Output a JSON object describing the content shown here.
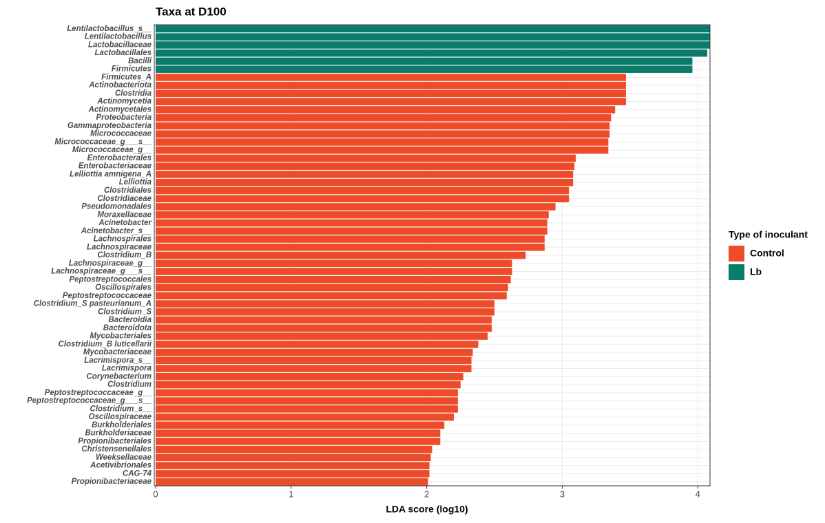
{
  "chart_data": {
    "type": "hbar",
    "title": "Taxa at D100",
    "x_label": "LDA score (log10)",
    "categories": [
      "Lentilactobacillus_s__",
      "Lentilactobacillus",
      "Lactobacillaceae",
      "Lactobacillales",
      "Bacilli",
      "Firmicutes",
      "Firmicutes_A",
      "Actinobacteriota",
      "Clostridia",
      "Actinomycetia",
      "Actinomycetales",
      "Proteobacteria",
      "Gammaproteobacteria",
      "Micrococcaceae",
      "Micrococcaceae_g___s__",
      "Micrococcaceae_g__",
      "Enterobacterales",
      "Enterobacteriaceae",
      "Lelliottia amnigena_A",
      "Lelliottia",
      "Clostridiales",
      "Clostridiaceae",
      "Pseudomonadales",
      "Moraxellaceae",
      "Acinetobacter",
      "Acinetobacter_s__",
      "Lachnospirales",
      "Lachnospiraceae",
      "Clostridium_B",
      "Lachnospiraceae_g__",
      "Lachnospiraceae_g___s__",
      "Peptostreptococcales",
      "Oscillospirales",
      "Peptostreptococcaceae",
      "Clostridium_S pasteurianum_A",
      "Clostridium_S",
      "Bacteroidia",
      "Bacteroidota",
      "Mycobacteriales",
      "Clostridium_B luticellarii",
      "Mycobacteriaceae",
      "Lacrimispora_s__",
      "Lacrimispora",
      "Corynebacterium",
      "Clostridium",
      "Peptostreptococcaceae_g__",
      "Peptostreptococcaceae_g___s__",
      "Clostridium_s__",
      "Oscillospiraceae",
      "Burkholderiales",
      "Burkholderiaceae",
      "Propionibacteriales",
      "Christensenellales",
      "Weeksellaceae",
      "Acetivibrionales",
      "CAG-74",
      "Propionibacteriaceae"
    ],
    "series": [
      {
        "name": "Control",
        "color": "#ee4b2b",
        "values": [
          null,
          null,
          null,
          null,
          null,
          null,
          3.47,
          3.47,
          3.47,
          3.47,
          3.39,
          3.36,
          3.35,
          3.35,
          3.34,
          3.34,
          3.1,
          3.09,
          3.08,
          3.08,
          3.05,
          3.05,
          2.95,
          2.9,
          2.89,
          2.89,
          2.87,
          2.87,
          2.73,
          2.63,
          2.63,
          2.62,
          2.6,
          2.59,
          2.5,
          2.5,
          2.48,
          2.48,
          2.45,
          2.38,
          2.34,
          2.33,
          2.33,
          2.27,
          2.25,
          2.23,
          2.23,
          2.23,
          2.2,
          2.13,
          2.1,
          2.1,
          2.04,
          2.03,
          2.02,
          2.02,
          2.01
        ]
      },
      {
        "name": "Lb",
        "color": "#0b7b6c",
        "values": [
          4.09,
          4.09,
          4.09,
          4.07,
          3.96,
          3.96,
          null,
          null,
          null,
          null,
          null,
          null,
          null,
          null,
          null,
          null,
          null,
          null,
          null,
          null,
          null,
          null,
          null,
          null,
          null,
          null,
          null,
          null,
          null,
          null,
          null,
          null,
          null,
          null,
          null,
          null,
          null,
          null,
          null,
          null,
          null,
          null,
          null,
          null,
          null,
          null,
          null,
          null,
          null,
          null,
          null,
          null,
          null,
          null,
          null,
          null,
          null
        ]
      }
    ],
    "legend_title": "Type of inoculant",
    "xlim": [
      0,
      4.09
    ],
    "xticks": [
      0,
      1,
      2,
      3,
      4
    ],
    "grid": true
  }
}
